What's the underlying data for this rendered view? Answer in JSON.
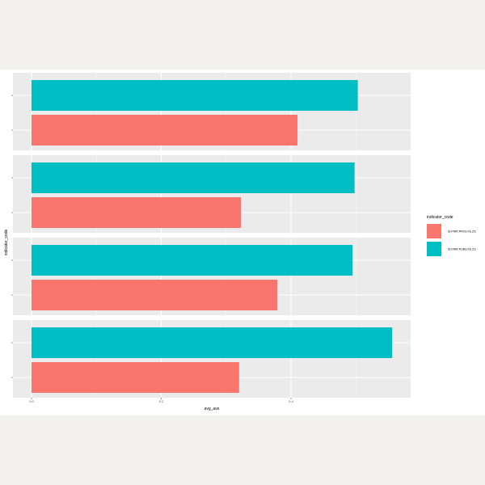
{
  "chart_data": {
    "type": "bar",
    "orientation": "horizontal",
    "facets": 4,
    "xlabel": "avg_ave",
    "ylabel": "indicator_code",
    "x_ticks": [
      "0.0",
      "0.2",
      "0.4"
    ],
    "x_tick_values": [
      0.0,
      0.2,
      0.4
    ],
    "xlim": [
      0,
      0.6
    ],
    "grid": true,
    "legend": {
      "title": "indicator_code",
      "placement": "right",
      "entries": [
        {
          "label": "SI.PWR.PRVS.FE.ZS",
          "color": "#f8766d"
        },
        {
          "label": "SI.PWR.PUBS.FE.ZS",
          "color": "#00bfc4"
        }
      ]
    },
    "series": [
      {
        "name": "SI.PWR.PUBS.FE.ZS",
        "color": "#00bfc4",
        "values": [
          0.503,
          0.498,
          0.495,
          0.556
        ]
      },
      {
        "name": "SI.PWR.PRVS.FE.ZS",
        "color": "#f8766d",
        "values": [
          0.41,
          0.323,
          0.379,
          0.32
        ]
      }
    ]
  }
}
